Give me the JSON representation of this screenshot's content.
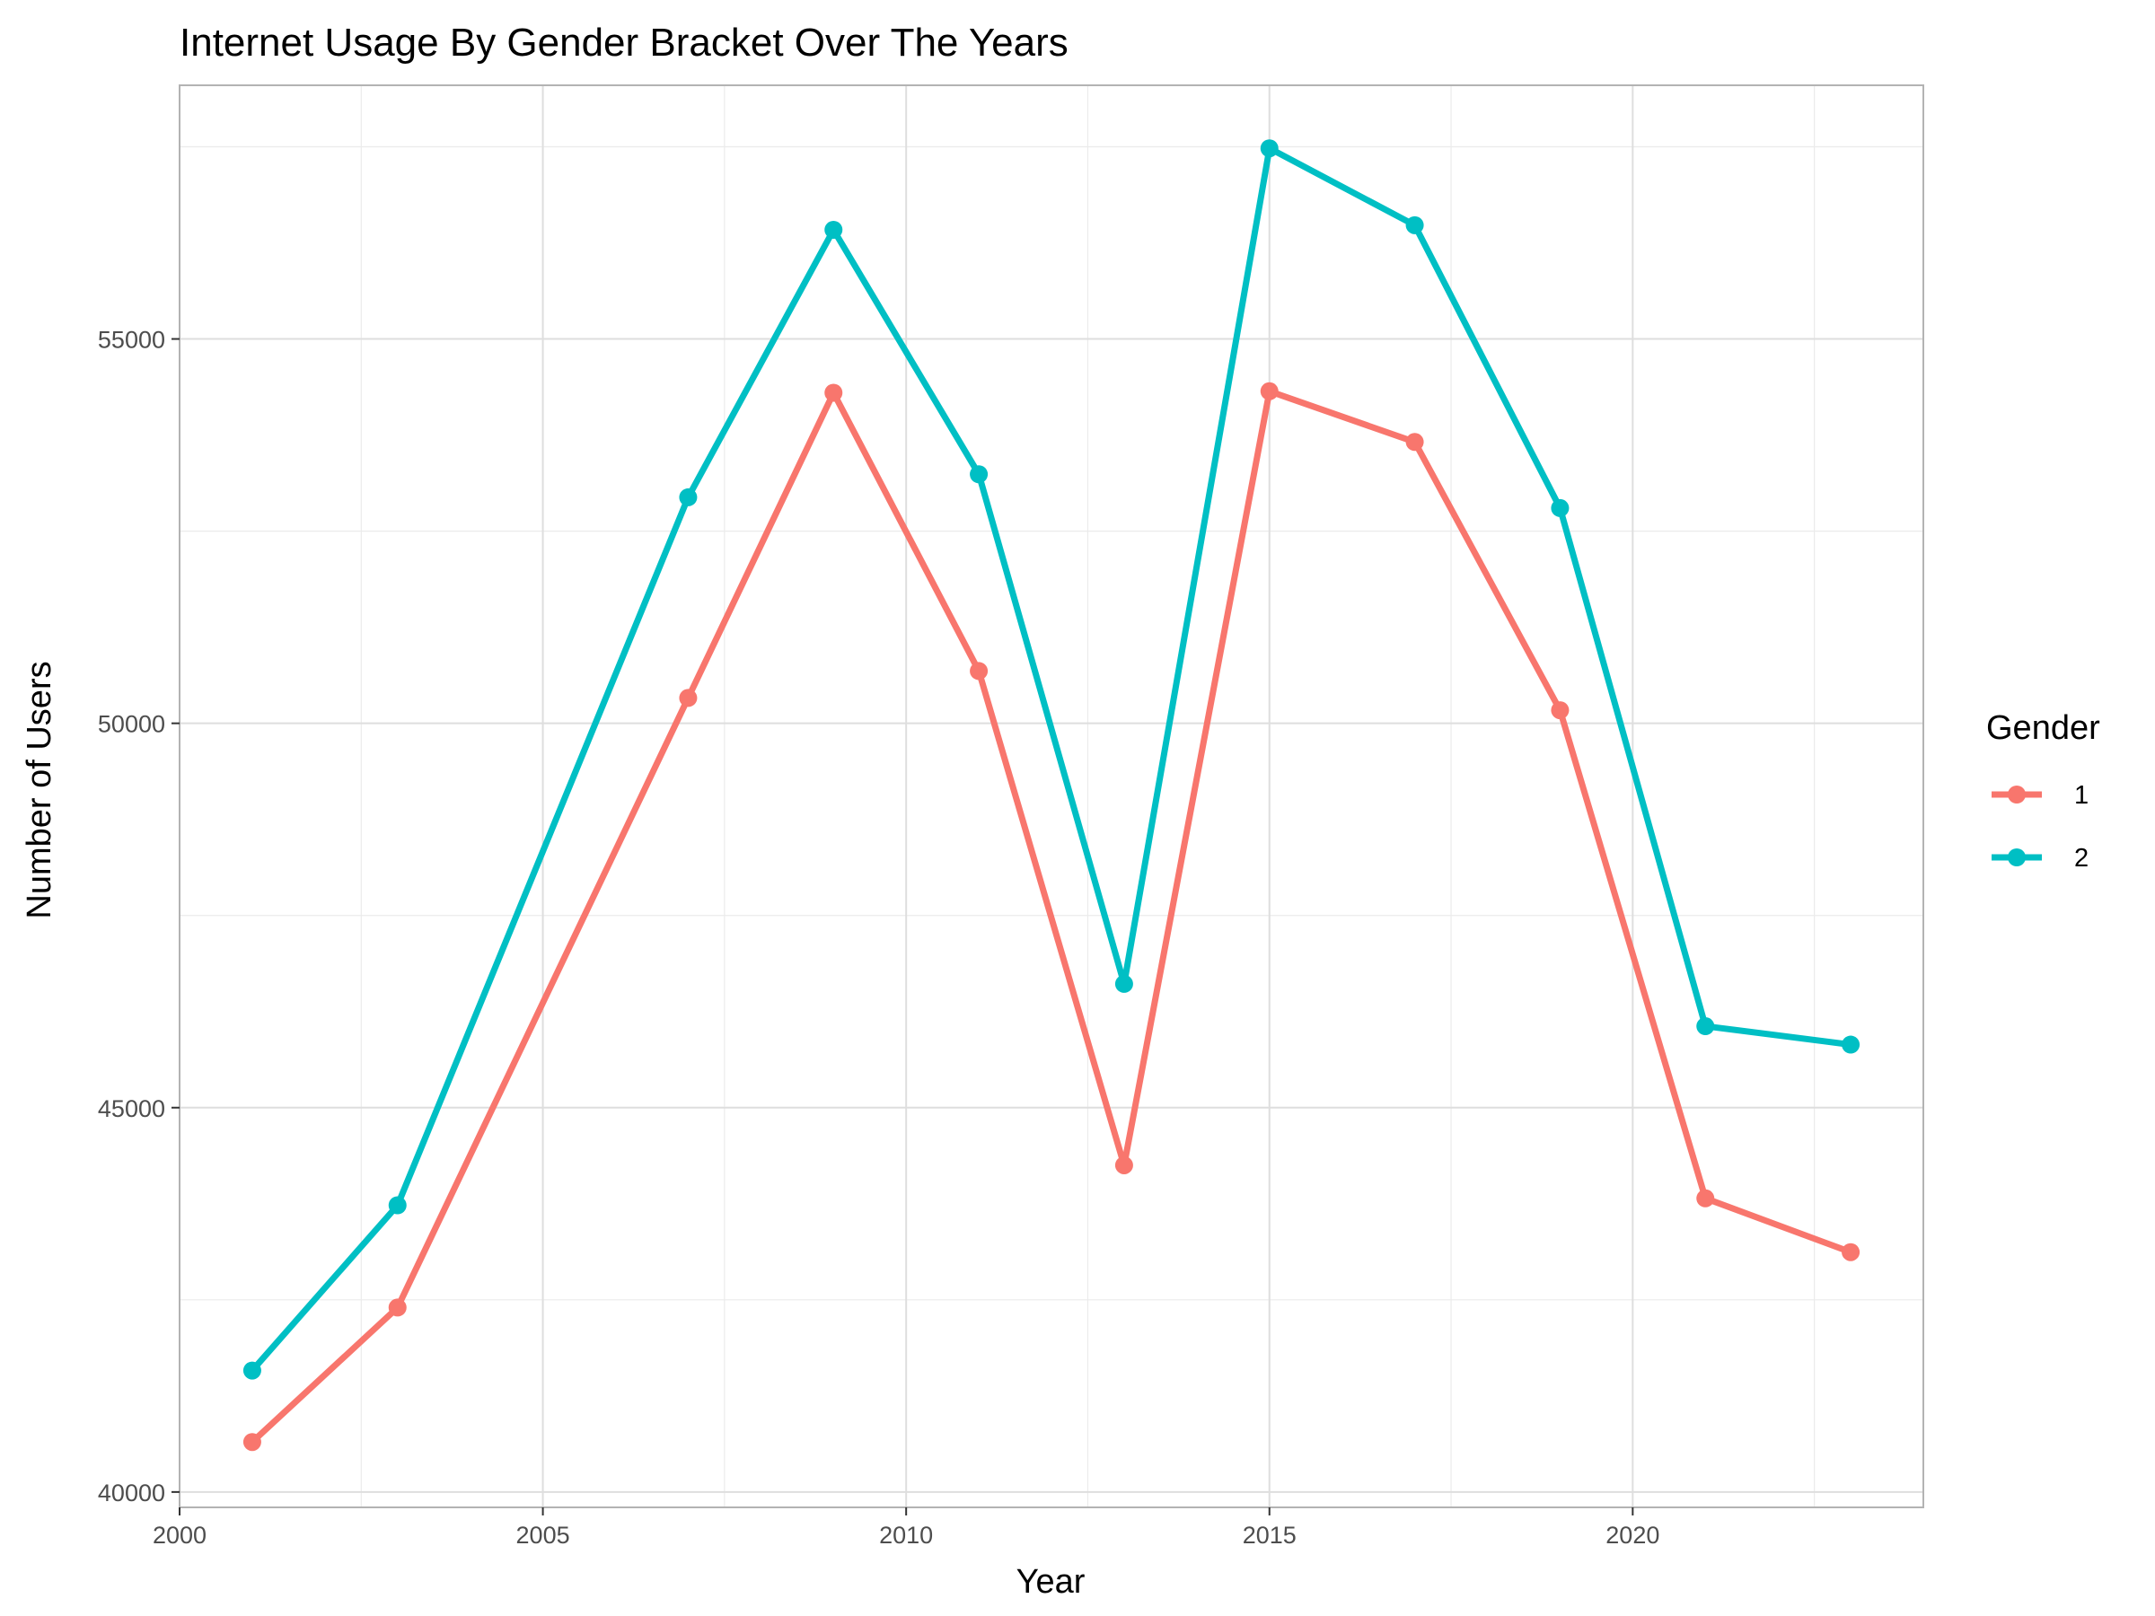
{
  "chart_data": {
    "type": "line",
    "title": "Internet Usage By Gender Bracket Over The Years",
    "xlabel": "Year",
    "ylabel": "Number of Users",
    "x": [
      2001,
      2003,
      2007,
      2009,
      2011,
      2013,
      2015,
      2017,
      2019,
      2021,
      2023
    ],
    "series": [
      {
        "name": "1",
        "color": "#F8766D",
        "values": [
          40650,
          42400,
          50330,
          54300,
          50680,
          44250,
          54320,
          53660,
          50170,
          43820,
          43120
        ]
      },
      {
        "name": "2",
        "color": "#00BFC4",
        "values": [
          41580,
          43730,
          52940,
          56420,
          53240,
          46610,
          57480,
          56480,
          52800,
          46060,
          45820
        ]
      }
    ],
    "xlim": [
      2000,
      2024
    ],
    "ylim": [
      39800,
      58300
    ],
    "x_ticks": [
      2000,
      2005,
      2010,
      2015,
      2020
    ],
    "y_ticks": [
      40000,
      45000,
      50000,
      55000
    ],
    "grid": true,
    "legend": {
      "title": "Gender",
      "position": "right"
    }
  }
}
